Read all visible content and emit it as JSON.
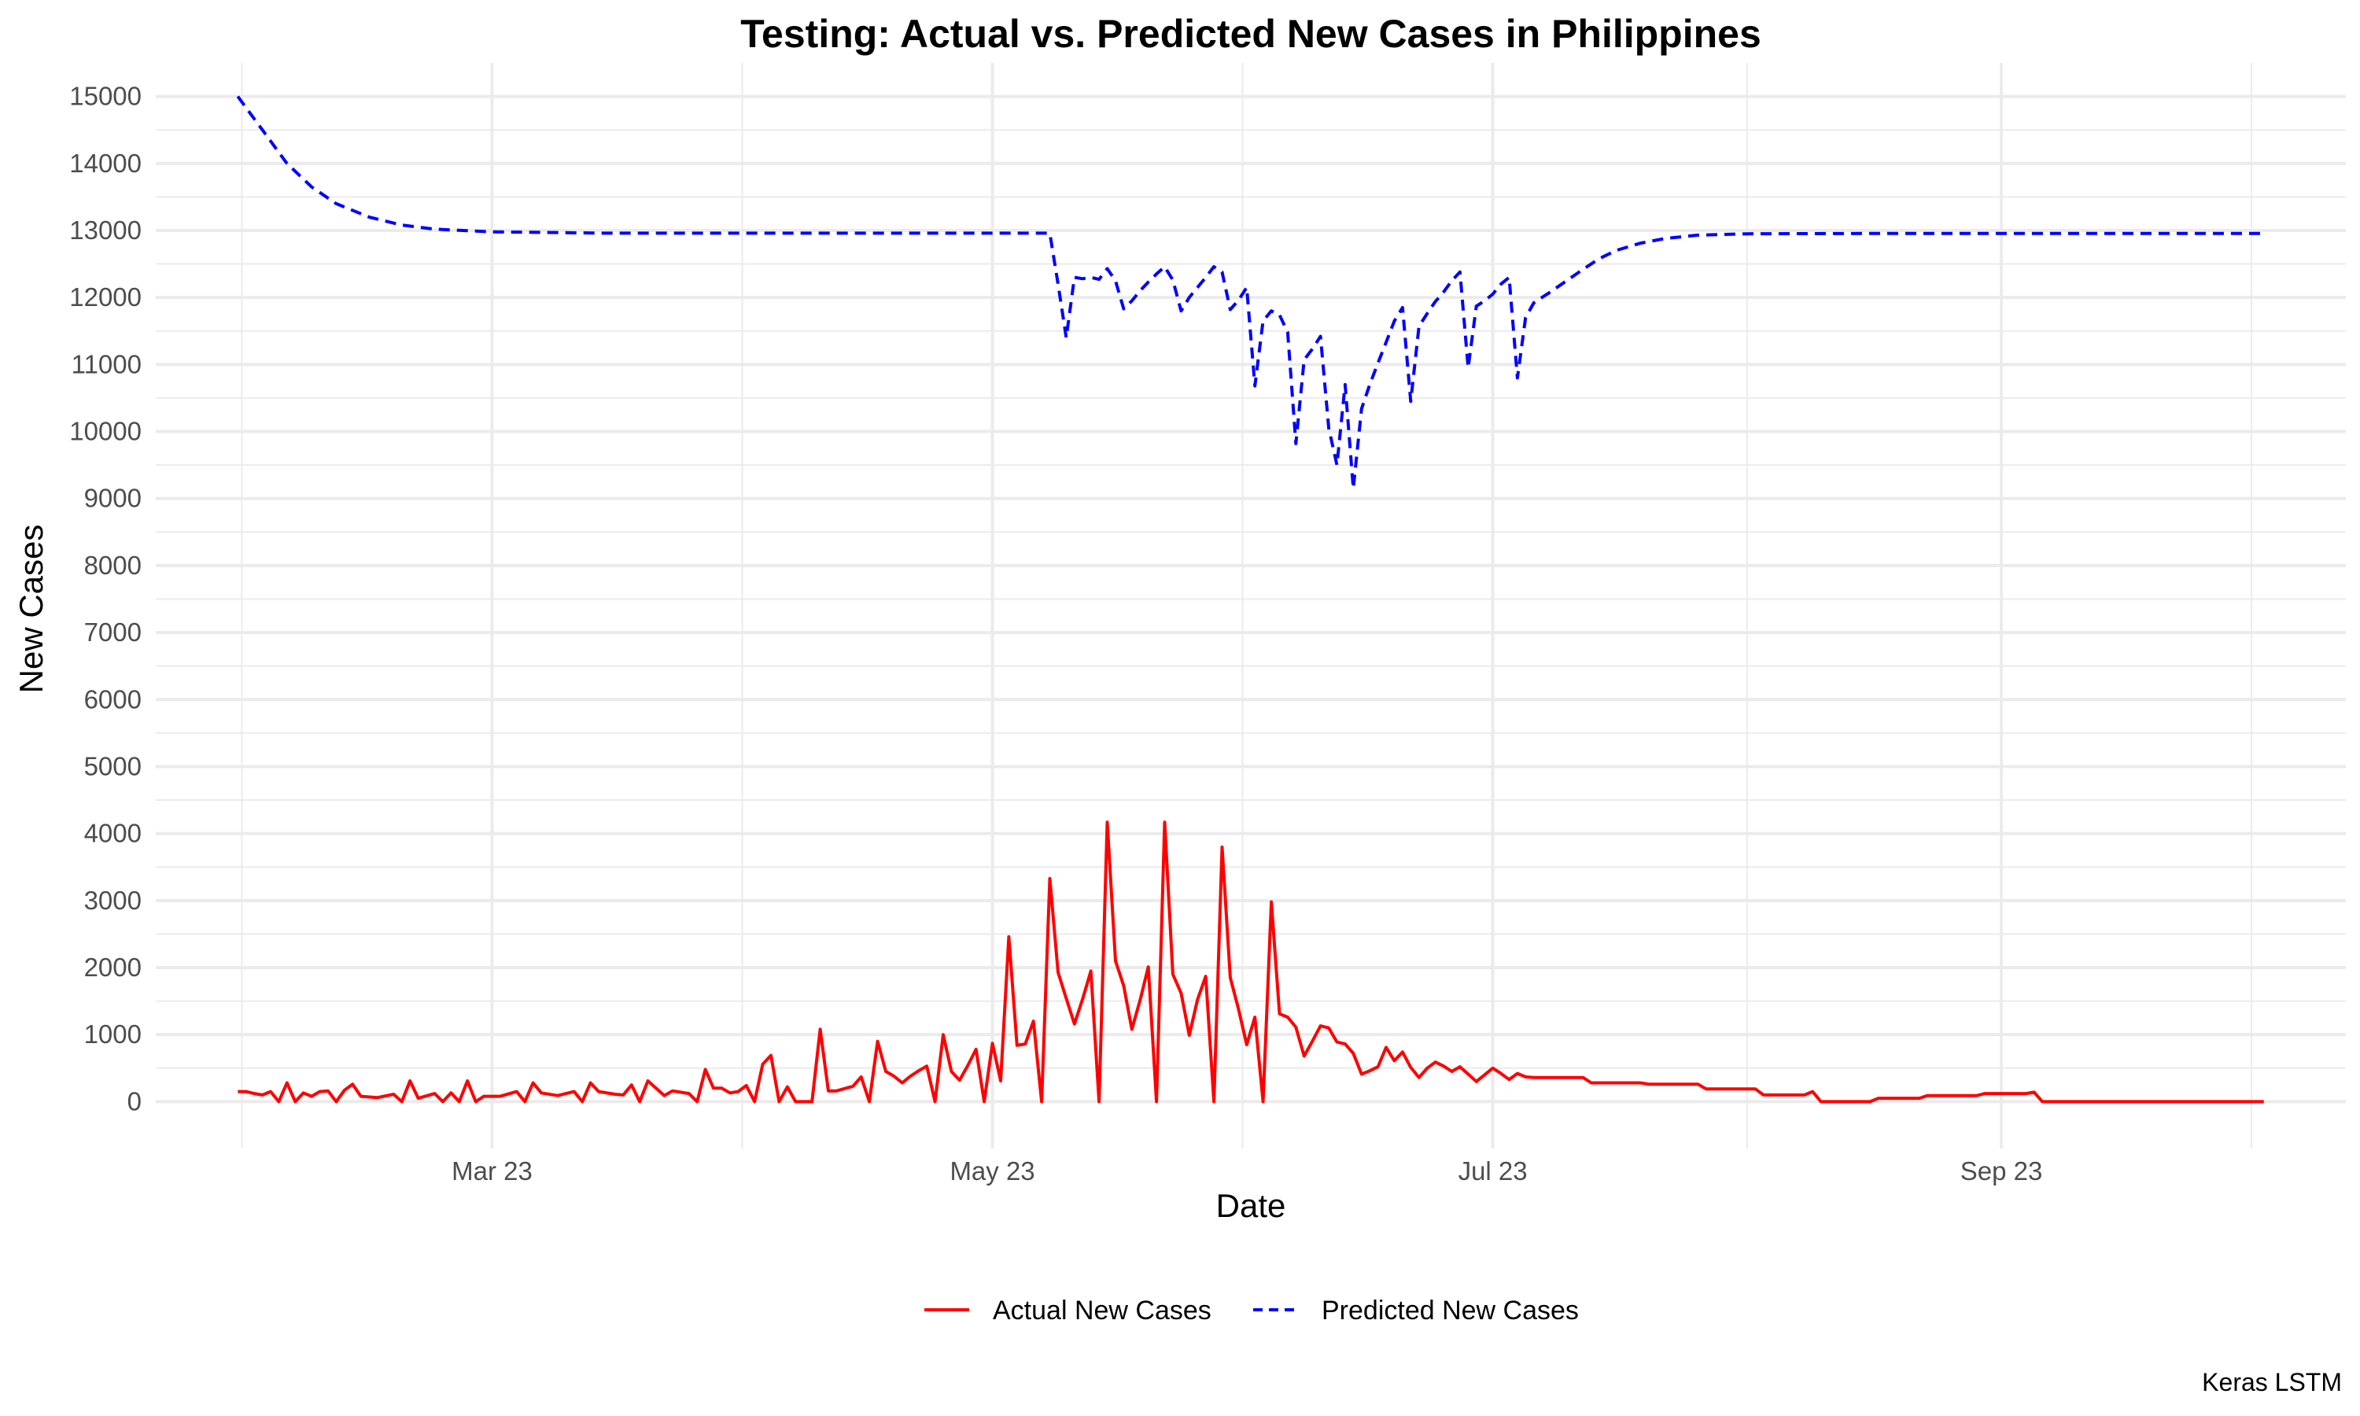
{
  "chart_data": {
    "type": "line",
    "title": "Testing: Actual vs. Predicted New Cases in Philippines",
    "xlabel": "Date",
    "ylabel": "New Cases",
    "caption": "Keras LSTM",
    "x_type": "date",
    "x_range": [
      "2023-01-19",
      "2023-10-13"
    ],
    "ylim": [
      -700,
      15500
    ],
    "x_ticks": [
      {
        "date": "2023-03-01",
        "label": "Mar 23"
      },
      {
        "date": "2023-05-01",
        "label": "May 23"
      },
      {
        "date": "2023-07-01",
        "label": "Jul 23"
      },
      {
        "date": "2023-09-01",
        "label": "Sep 23"
      }
    ],
    "y_ticks": [
      0,
      1000,
      2000,
      3000,
      4000,
      5000,
      6000,
      7000,
      8000,
      9000,
      10000,
      11000,
      12000,
      13000,
      14000,
      15000
    ],
    "grid": true,
    "legend": {
      "position": "bottom"
    },
    "series": [
      {
        "name": "Actual New Cases",
        "color": "#ff0000",
        "dash": "solid",
        "points": [
          [
            "2023-01-29",
            150
          ],
          [
            "2023-01-30",
            150
          ],
          [
            "2023-01-31",
            120
          ],
          [
            "2023-02-01",
            100
          ],
          [
            "2023-02-02",
            150
          ],
          [
            "2023-02-03",
            0
          ],
          [
            "2023-02-04",
            280
          ],
          [
            "2023-02-05",
            0
          ],
          [
            "2023-02-06",
            130
          ],
          [
            "2023-02-07",
            80
          ],
          [
            "2023-02-08",
            150
          ],
          [
            "2023-02-09",
            160
          ],
          [
            "2023-02-10",
            0
          ],
          [
            "2023-02-11",
            170
          ],
          [
            "2023-02-12",
            260
          ],
          [
            "2023-02-13",
            80
          ],
          [
            "2023-02-15",
            60
          ],
          [
            "2023-02-17",
            110
          ],
          [
            "2023-02-18",
            0
          ],
          [
            "2023-02-19",
            310
          ],
          [
            "2023-02-20",
            50
          ],
          [
            "2023-02-22",
            120
          ],
          [
            "2023-02-23",
            0
          ],
          [
            "2023-02-24",
            130
          ],
          [
            "2023-02-25",
            0
          ],
          [
            "2023-02-26",
            310
          ],
          [
            "2023-02-27",
            0
          ],
          [
            "2023-02-28",
            80
          ],
          [
            "2023-03-02",
            80
          ],
          [
            "2023-03-04",
            150
          ],
          [
            "2023-03-05",
            0
          ],
          [
            "2023-03-06",
            280
          ],
          [
            "2023-03-07",
            130
          ],
          [
            "2023-03-09",
            90
          ],
          [
            "2023-03-11",
            150
          ],
          [
            "2023-03-12",
            0
          ],
          [
            "2023-03-13",
            280
          ],
          [
            "2023-03-14",
            150
          ],
          [
            "2023-03-16",
            110
          ],
          [
            "2023-03-17",
            100
          ],
          [
            "2023-03-18",
            250
          ],
          [
            "2023-03-19",
            0
          ],
          [
            "2023-03-20",
            310
          ],
          [
            "2023-03-22",
            90
          ],
          [
            "2023-03-23",
            160
          ],
          [
            "2023-03-25",
            120
          ],
          [
            "2023-03-26",
            0
          ],
          [
            "2023-03-27",
            480
          ],
          [
            "2023-03-28",
            200
          ],
          [
            "2023-03-29",
            200
          ],
          [
            "2023-03-30",
            130
          ],
          [
            "2023-03-31",
            150
          ],
          [
            "2023-04-01",
            240
          ],
          [
            "2023-04-02",
            0
          ],
          [
            "2023-04-03",
            560
          ],
          [
            "2023-04-04",
            690
          ],
          [
            "2023-04-05",
            0
          ],
          [
            "2023-04-06",
            220
          ],
          [
            "2023-04-07",
            0
          ],
          [
            "2023-04-09",
            0
          ],
          [
            "2023-04-10",
            1080
          ],
          [
            "2023-04-11",
            160
          ],
          [
            "2023-04-12",
            160
          ],
          [
            "2023-04-14",
            230
          ],
          [
            "2023-04-15",
            370
          ],
          [
            "2023-04-16",
            0
          ],
          [
            "2023-04-17",
            900
          ],
          [
            "2023-04-18",
            450
          ],
          [
            "2023-04-19",
            380
          ],
          [
            "2023-04-20",
            280
          ],
          [
            "2023-04-21",
            380
          ],
          [
            "2023-04-22",
            460
          ],
          [
            "2023-04-23",
            530
          ],
          [
            "2023-04-24",
            0
          ],
          [
            "2023-04-25",
            1000
          ],
          [
            "2023-04-26",
            450
          ],
          [
            "2023-04-27",
            320
          ],
          [
            "2023-04-28",
            540
          ],
          [
            "2023-04-29",
            780
          ],
          [
            "2023-04-30",
            0
          ],
          [
            "2023-05-01",
            870
          ],
          [
            "2023-05-02",
            310
          ],
          [
            "2023-05-03",
            2460
          ],
          [
            "2023-05-04",
            840
          ],
          [
            "2023-05-05",
            860
          ],
          [
            "2023-05-06",
            1200
          ],
          [
            "2023-05-07",
            0
          ],
          [
            "2023-05-08",
            3330
          ],
          [
            "2023-05-09",
            1930
          ],
          [
            "2023-05-10",
            1540
          ],
          [
            "2023-05-11",
            1160
          ],
          [
            "2023-05-12",
            1530
          ],
          [
            "2023-05-13",
            1950
          ],
          [
            "2023-05-14",
            0
          ],
          [
            "2023-05-15",
            4170
          ],
          [
            "2023-05-16",
            2100
          ],
          [
            "2023-05-17",
            1730
          ],
          [
            "2023-05-18",
            1080
          ],
          [
            "2023-05-19",
            1510
          ],
          [
            "2023-05-20",
            2010
          ],
          [
            "2023-05-21",
            0
          ],
          [
            "2023-05-22",
            4170
          ],
          [
            "2023-05-23",
            1900
          ],
          [
            "2023-05-24",
            1620
          ],
          [
            "2023-05-25",
            990
          ],
          [
            "2023-05-26",
            1520
          ],
          [
            "2023-05-27",
            1870
          ],
          [
            "2023-05-28",
            0
          ],
          [
            "2023-05-29",
            3800
          ],
          [
            "2023-05-30",
            1850
          ],
          [
            "2023-05-31",
            1380
          ],
          [
            "2023-06-01",
            850
          ],
          [
            "2023-06-02",
            1260
          ],
          [
            "2023-06-03",
            0
          ],
          [
            "2023-06-04",
            2980
          ],
          [
            "2023-06-05",
            1310
          ],
          [
            "2023-06-06",
            1260
          ],
          [
            "2023-06-07",
            1110
          ],
          [
            "2023-06-08",
            680
          ],
          [
            "2023-06-09",
            900
          ],
          [
            "2023-06-10",
            1130
          ],
          [
            "2023-06-11",
            1100
          ],
          [
            "2023-06-12",
            890
          ],
          [
            "2023-06-13",
            860
          ],
          [
            "2023-06-14",
            720
          ],
          [
            "2023-06-15",
            410
          ],
          [
            "2023-06-16",
            460
          ],
          [
            "2023-06-17",
            520
          ],
          [
            "2023-06-18",
            810
          ],
          [
            "2023-06-19",
            610
          ],
          [
            "2023-06-20",
            740
          ],
          [
            "2023-06-21",
            510
          ],
          [
            "2023-06-22",
            360
          ],
          [
            "2023-06-23",
            500
          ],
          [
            "2023-06-24",
            590
          ],
          [
            "2023-06-25",
            530
          ],
          [
            "2023-06-26",
            450
          ],
          [
            "2023-06-27",
            520
          ],
          [
            "2023-06-28",
            410
          ],
          [
            "2023-06-29",
            300
          ],
          [
            "2023-06-30",
            400
          ],
          [
            "2023-07-01",
            500
          ],
          [
            "2023-07-02",
            420
          ],
          [
            "2023-07-03",
            330
          ],
          [
            "2023-07-04",
            420
          ],
          [
            "2023-07-05",
            370
          ],
          [
            "2023-07-06",
            360
          ],
          [
            "2023-07-12",
            360
          ],
          [
            "2023-07-13",
            280
          ],
          [
            "2023-07-19",
            280
          ],
          [
            "2023-07-20",
            260
          ],
          [
            "2023-07-26",
            260
          ],
          [
            "2023-07-27",
            190
          ],
          [
            "2023-08-02",
            190
          ],
          [
            "2023-08-03",
            100
          ],
          [
            "2023-08-08",
            100
          ],
          [
            "2023-08-09",
            150
          ],
          [
            "2023-08-10",
            0
          ],
          [
            "2023-08-16",
            0
          ],
          [
            "2023-08-17",
            50
          ],
          [
            "2023-08-22",
            50
          ],
          [
            "2023-08-23",
            90
          ],
          [
            "2023-08-29",
            90
          ],
          [
            "2023-08-30",
            120
          ],
          [
            "2023-09-04",
            120
          ],
          [
            "2023-09-05",
            140
          ],
          [
            "2023-09-06",
            0
          ],
          [
            "2023-10-03",
            0
          ]
        ]
      },
      {
        "name": "Predicted New Cases",
        "color": "#0000ff",
        "dash": "dashed",
        "points": [
          [
            "2023-01-29",
            15000
          ],
          [
            "2023-02-01",
            14500
          ],
          [
            "2023-02-04",
            14000
          ],
          [
            "2023-02-07",
            13650
          ],
          [
            "2023-02-10",
            13400
          ],
          [
            "2023-02-14",
            13200
          ],
          [
            "2023-02-18",
            13080
          ],
          [
            "2023-02-22",
            13020
          ],
          [
            "2023-03-01",
            12980
          ],
          [
            "2023-03-15",
            12960
          ],
          [
            "2023-04-15",
            12960
          ],
          [
            "2023-05-07",
            12960
          ],
          [
            "2023-05-08",
            12960
          ],
          [
            "2023-05-09",
            12200
          ],
          [
            "2023-05-10",
            11400
          ],
          [
            "2023-05-11",
            12300
          ],
          [
            "2023-05-12",
            12280
          ],
          [
            "2023-05-13",
            12300
          ],
          [
            "2023-05-14",
            12270
          ],
          [
            "2023-05-15",
            12430
          ],
          [
            "2023-05-16",
            12250
          ],
          [
            "2023-05-17",
            11830
          ],
          [
            "2023-05-18",
            11950
          ],
          [
            "2023-05-19",
            12100
          ],
          [
            "2023-05-20",
            12230
          ],
          [
            "2023-05-21",
            12350
          ],
          [
            "2023-05-22",
            12460
          ],
          [
            "2023-05-23",
            12260
          ],
          [
            "2023-05-24",
            11800
          ],
          [
            "2023-05-25",
            12000
          ],
          [
            "2023-05-26",
            12150
          ],
          [
            "2023-05-27",
            12300
          ],
          [
            "2023-05-28",
            12460
          ],
          [
            "2023-05-29",
            12380
          ],
          [
            "2023-05-30",
            11820
          ],
          [
            "2023-05-31",
            11960
          ],
          [
            "2023-06-01",
            12150
          ],
          [
            "2023-06-02",
            10680
          ],
          [
            "2023-06-03",
            11650
          ],
          [
            "2023-06-04",
            11800
          ],
          [
            "2023-06-05",
            11740
          ],
          [
            "2023-06-06",
            11480
          ],
          [
            "2023-06-07",
            9820
          ],
          [
            "2023-06-08",
            11070
          ],
          [
            "2023-06-09",
            11230
          ],
          [
            "2023-06-10",
            11420
          ],
          [
            "2023-06-11",
            10050
          ],
          [
            "2023-06-12",
            9500
          ],
          [
            "2023-06-13",
            10700
          ],
          [
            "2023-06-14",
            9150
          ],
          [
            "2023-06-15",
            10340
          ],
          [
            "2023-06-16",
            10700
          ],
          [
            "2023-06-17",
            11020
          ],
          [
            "2023-06-18",
            11330
          ],
          [
            "2023-06-19",
            11650
          ],
          [
            "2023-06-20",
            11850
          ],
          [
            "2023-06-21",
            10450
          ],
          [
            "2023-06-22",
            11570
          ],
          [
            "2023-06-23",
            11760
          ],
          [
            "2023-06-24",
            11940
          ],
          [
            "2023-06-25",
            12080
          ],
          [
            "2023-06-26",
            12250
          ],
          [
            "2023-06-27",
            12380
          ],
          [
            "2023-06-28",
            10950
          ],
          [
            "2023-06-29",
            11870
          ],
          [
            "2023-06-30",
            11950
          ],
          [
            "2023-07-01",
            12050
          ],
          [
            "2023-07-02",
            12200
          ],
          [
            "2023-07-03",
            12300
          ],
          [
            "2023-07-04",
            10800
          ],
          [
            "2023-07-05",
            11700
          ],
          [
            "2023-07-06",
            11920
          ],
          [
            "2023-07-08",
            12080
          ],
          [
            "2023-07-10",
            12250
          ],
          [
            "2023-07-12",
            12420
          ],
          [
            "2023-07-14",
            12580
          ],
          [
            "2023-07-16",
            12700
          ],
          [
            "2023-07-19",
            12810
          ],
          [
            "2023-07-22",
            12880
          ],
          [
            "2023-07-26",
            12930
          ],
          [
            "2023-08-01",
            12950
          ],
          [
            "2023-08-15",
            12955
          ],
          [
            "2023-10-03",
            12955
          ]
        ]
      }
    ]
  }
}
